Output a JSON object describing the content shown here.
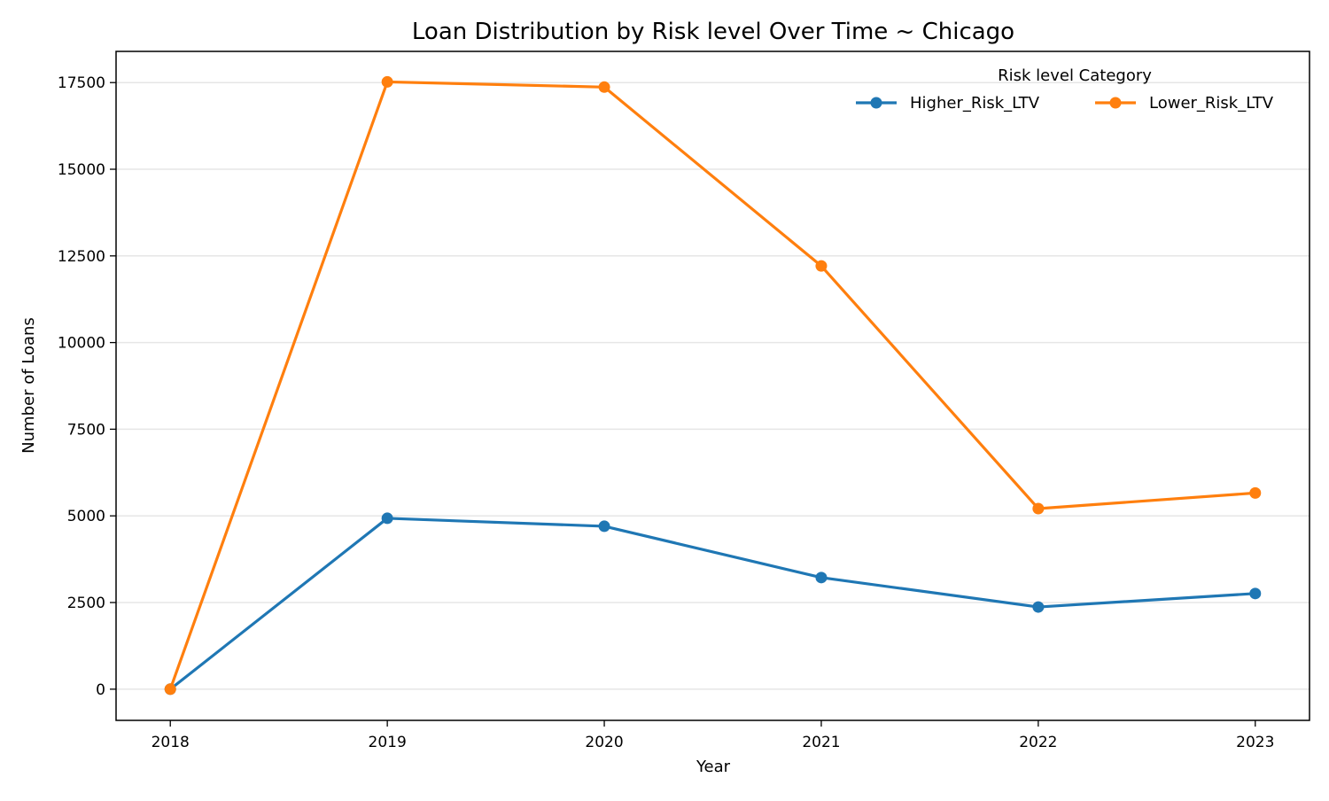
{
  "chart_data": {
    "type": "line",
    "title": "Loan Distribution by Risk level Over Time ~ Chicago",
    "xlabel": "Year",
    "ylabel": "Number of Loans",
    "x": [
      2018,
      2019,
      2020,
      2021,
      2022,
      2023
    ],
    "x_tick_labels": [
      "2018",
      "2019",
      "2020",
      "2021",
      "2022",
      "2023"
    ],
    "xlim": [
      2017.75,
      2023.25
    ],
    "ylim": [
      -900,
      18400
    ],
    "y_ticks": [
      0,
      2500,
      5000,
      7500,
      10000,
      12500,
      15000,
      17500
    ],
    "y_tick_labels": [
      "0",
      "2500",
      "5000",
      "7500",
      "10000",
      "12500",
      "15000",
      "17500"
    ],
    "grid": "horizontal",
    "legend": {
      "title": "Risk level Category",
      "placement": "top-right",
      "frame": false
    },
    "series": [
      {
        "name": "Higher_Risk_LTV",
        "color": "#1f77b4",
        "values": [
          0,
          4930,
          4700,
          3220,
          2370,
          2760
        ]
      },
      {
        "name": "Lower_Risk_LTV",
        "color": "#ff7f0e",
        "values": [
          0,
          17520,
          17370,
          12210,
          5210,
          5660
        ]
      }
    ]
  }
}
